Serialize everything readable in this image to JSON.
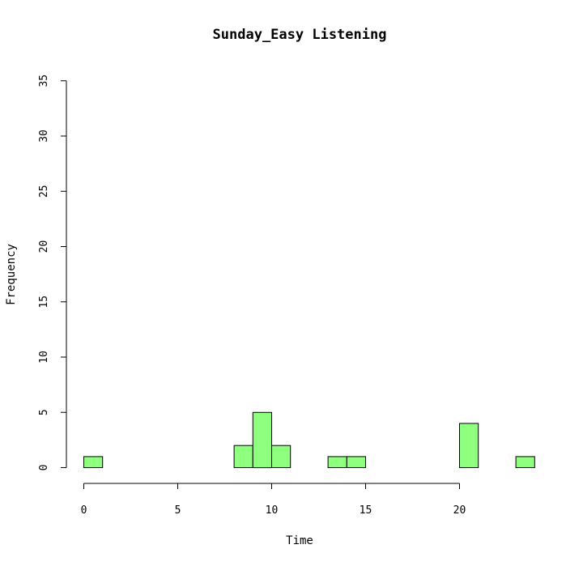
{
  "chart_data": {
    "type": "bar",
    "title": "Sunday_Easy Listening",
    "xlabel": "Time",
    "ylabel": "Frequency",
    "bar_color": "#8fff80",
    "xlim": [
      0,
      24
    ],
    "ylim": [
      0,
      35
    ],
    "x_ticks": [
      0,
      5,
      10,
      15,
      20
    ],
    "y_ticks": [
      0,
      5,
      10,
      15,
      20,
      25,
      30,
      35
    ],
    "bin_width": 1,
    "bins": [
      {
        "start": 0,
        "count": 1
      },
      {
        "start": 1,
        "count": 0
      },
      {
        "start": 2,
        "count": 0
      },
      {
        "start": 3,
        "count": 0
      },
      {
        "start": 4,
        "count": 0
      },
      {
        "start": 5,
        "count": 0
      },
      {
        "start": 6,
        "count": 0
      },
      {
        "start": 7,
        "count": 0
      },
      {
        "start": 8,
        "count": 2
      },
      {
        "start": 9,
        "count": 5
      },
      {
        "start": 10,
        "count": 2
      },
      {
        "start": 11,
        "count": 0
      },
      {
        "start": 12,
        "count": 0
      },
      {
        "start": 13,
        "count": 1
      },
      {
        "start": 14,
        "count": 1
      },
      {
        "start": 15,
        "count": 0
      },
      {
        "start": 16,
        "count": 0
      },
      {
        "start": 17,
        "count": 0
      },
      {
        "start": 18,
        "count": 0
      },
      {
        "start": 19,
        "count": 0
      },
      {
        "start": 20,
        "count": 4
      },
      {
        "start": 21,
        "count": 0
      },
      {
        "start": 22,
        "count": 0
      },
      {
        "start": 23,
        "count": 1
      }
    ]
  }
}
